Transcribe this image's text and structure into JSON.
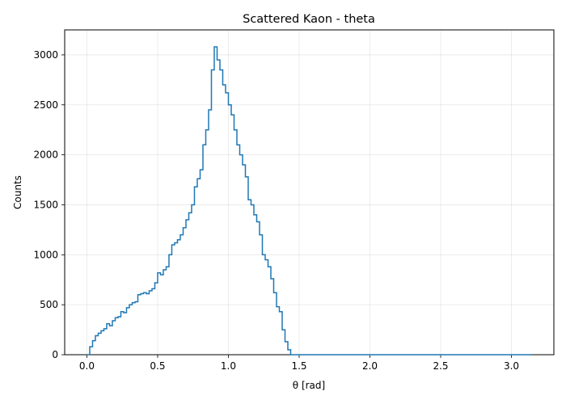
{
  "chart_data": {
    "type": "line",
    "style": "step-histogram",
    "title": "Scattered Kaon - theta",
    "xlabel": "θ [rad]",
    "ylabel": "Counts",
    "xlim": [
      -0.157,
      3.3
    ],
    "ylim": [
      0,
      3250
    ],
    "xticks": [
      0.0,
      0.5,
      1.0,
      1.5,
      2.0,
      2.5,
      3.0
    ],
    "xtick_labels": [
      "0.0",
      "0.5",
      "1.0",
      "1.5",
      "2.0",
      "2.5",
      "3.0"
    ],
    "yticks": [
      0,
      500,
      1000,
      1500,
      2000,
      2500,
      3000
    ],
    "ytick_labels": [
      "0",
      "500",
      "1000",
      "1500",
      "2000",
      "2500",
      "3000"
    ],
    "grid": true,
    "line_color": "#1f77b4",
    "series": [
      {
        "x": [
          0.0,
          0.02,
          0.04,
          0.06,
          0.08,
          0.1,
          0.12,
          0.14,
          0.16,
          0.18,
          0.2,
          0.22,
          0.24,
          0.26,
          0.28,
          0.3,
          0.32,
          0.34,
          0.36,
          0.38,
          0.4,
          0.42,
          0.44,
          0.46,
          0.48,
          0.5,
          0.52,
          0.54,
          0.56,
          0.58,
          0.6,
          0.62,
          0.64,
          0.66,
          0.68,
          0.7,
          0.72,
          0.74,
          0.76,
          0.78,
          0.8,
          0.82,
          0.84,
          0.86,
          0.88,
          0.9,
          0.92,
          0.94,
          0.96,
          0.98,
          1.0,
          1.02,
          1.04,
          1.06,
          1.08,
          1.1,
          1.12,
          1.14,
          1.16,
          1.18,
          1.2,
          1.22,
          1.24,
          1.26,
          1.28,
          1.3,
          1.32,
          1.34,
          1.36,
          1.38,
          1.4,
          1.42,
          1.44,
          1.46,
          1.48,
          1.5,
          1.52,
          1.54,
          1.56,
          3.14
        ],
        "values": [
          0,
          80,
          140,
          190,
          215,
          240,
          260,
          310,
          290,
          340,
          370,
          380,
          430,
          420,
          470,
          500,
          520,
          530,
          600,
          610,
          620,
          610,
          640,
          660,
          720,
          820,
          800,
          850,
          880,
          1000,
          1100,
          1120,
          1150,
          1200,
          1270,
          1350,
          1420,
          1500,
          1680,
          1760,
          1850,
          2100,
          2250,
          2450,
          2850,
          3080,
          2950,
          2850,
          2700,
          2620,
          2500,
          2400,
          2250,
          2100,
          2000,
          1900,
          1780,
          1550,
          1500,
          1400,
          1330,
          1200,
          1000,
          950,
          880,
          760,
          620,
          480,
          430,
          250,
          130,
          50,
          0,
          0,
          0,
          0,
          0,
          0,
          0,
          0
        ]
      }
    ]
  }
}
